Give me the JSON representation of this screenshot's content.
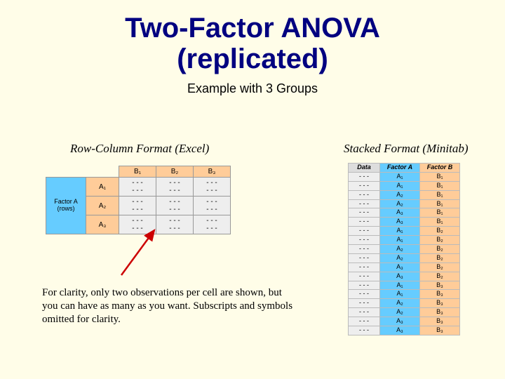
{
  "title_line1": "Two-Factor ANOVA",
  "title_line2": "(replicated)",
  "subtitle": "Example with 3 Groups",
  "left_format_label": "Row-Column Format (Excel)",
  "right_format_label": "Stacked Format (Minitab)",
  "note": "For clarity, only two observations per cell are shown, but you can have as many as you want. Subscripts and symbols omitted for clarity.",
  "colors": {
    "background": "#fffde8",
    "title": "#000080",
    "factor_a_bg": "#66ccff",
    "factor_b_bg": "#ffcc99",
    "data_bg": "#eeeeee",
    "arrow": "#cc0000"
  },
  "left_table": {
    "row_header_outer": "Factor A\n(rows)",
    "row_headers": [
      "A₁",
      "A₂",
      "A₃"
    ],
    "col_headers": [
      "B₁",
      "B₂",
      "B₃"
    ],
    "cell_placeholder": "- - -\n- - -"
  },
  "right_table": {
    "headers": [
      "Data",
      "Factor A",
      "Factor B"
    ],
    "rows": [
      [
        "- - -",
        "A₁",
        "B₁"
      ],
      [
        "- - -",
        "A₁",
        "B₁"
      ],
      [
        "- - -",
        "A₂",
        "B₁"
      ],
      [
        "- - -",
        "A₂",
        "B₁"
      ],
      [
        "- - -",
        "A₃",
        "B₁"
      ],
      [
        "- - -",
        "A₃",
        "B₁"
      ],
      [
        "- - -",
        "A₁",
        "B₂"
      ],
      [
        "- - -",
        "A₁",
        "B₂"
      ],
      [
        "- - -",
        "A₂",
        "B₂"
      ],
      [
        "- - -",
        "A₂",
        "B₂"
      ],
      [
        "- - -",
        "A₃",
        "B₂"
      ],
      [
        "- - -",
        "A₃",
        "B₂"
      ],
      [
        "- - -",
        "A₁",
        "B₃"
      ],
      [
        "- - -",
        "A₁",
        "B₃"
      ],
      [
        "- - -",
        "A₂",
        "B₃"
      ],
      [
        "- - -",
        "A₂",
        "B₃"
      ],
      [
        "- - -",
        "A₃",
        "B₃"
      ],
      [
        "- - -",
        "A₃",
        "B₃"
      ]
    ]
  }
}
